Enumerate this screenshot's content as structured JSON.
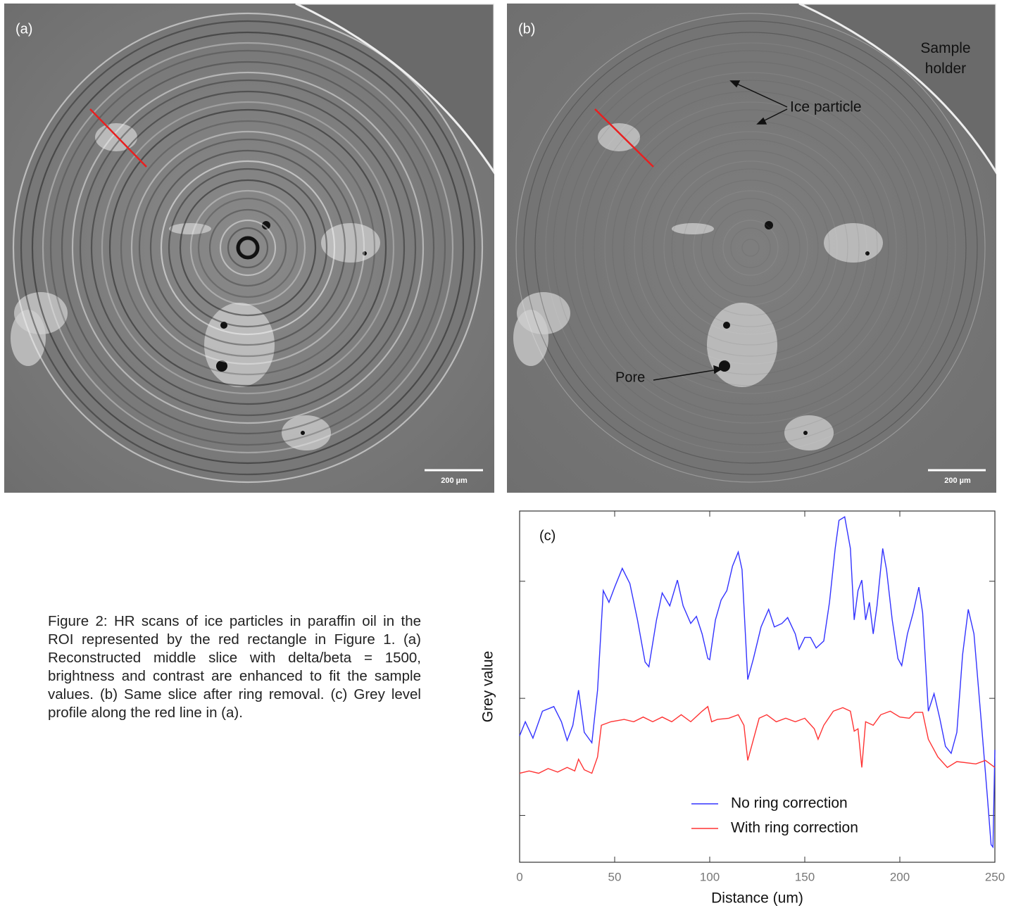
{
  "panels": [
    {
      "label": "(a)",
      "scale_bar": "200 µm"
    },
    {
      "label": "(b)",
      "scale_bar": "200 µm",
      "annotations": [
        "Sample holder",
        "Ice particle",
        "Pore"
      ]
    }
  ],
  "caption": "Figure 2: HR scans of ice particles in paraffin oil in the ROI represented by the red rectangle in Figure 1. (a) Reconstructed middle slice with delta/beta = 1500, brightness and contrast are enhanced to fit the sample values. (b) Same slice after ring removal. (c) Grey level profile along the red line in (a).",
  "chart_data": {
    "type": "line",
    "label": "(c)",
    "xlabel": "Distance (um)",
    "ylabel": "Grey value",
    "xlim": [
      0,
      250
    ],
    "xticks": [
      0,
      50,
      100,
      150,
      200,
      250
    ],
    "ylim": [
      0,
      3
    ],
    "yticks": [
      0.4,
      1.4,
      2.4
    ],
    "legend": "lower center",
    "series": [
      {
        "name": "No ring correction",
        "color": "#3333ff",
        "x": [
          0,
          3,
          7,
          12,
          18,
          22,
          25,
          28,
          31,
          34,
          38,
          41,
          44,
          47,
          50,
          54,
          58,
          62,
          66,
          68,
          72,
          75,
          79,
          83,
          86,
          90,
          93,
          96,
          99,
          100,
          103,
          106,
          109,
          112,
          115,
          117,
          120,
          123,
          127,
          131,
          134,
          138,
          141,
          145,
          147,
          150,
          153,
          156,
          160,
          163,
          166,
          168,
          171,
          174,
          176,
          178,
          180,
          182,
          184,
          186,
          188,
          191,
          193,
          196,
          199,
          201,
          204,
          207,
          210,
          212,
          215,
          218,
          221,
          224,
          227,
          230,
          233,
          236,
          239,
          243,
          246,
          248,
          249,
          250
        ],
        "values": [
          1.08,
          1.2,
          1.06,
          1.29,
          1.33,
          1.2,
          1.04,
          1.17,
          1.47,
          1.11,
          1.02,
          1.47,
          2.32,
          2.22,
          2.35,
          2.51,
          2.38,
          2.07,
          1.71,
          1.67,
          2.07,
          2.3,
          2.19,
          2.41,
          2.19,
          2.04,
          2.1,
          1.95,
          1.74,
          1.73,
          2.07,
          2.24,
          2.32,
          2.53,
          2.65,
          2.5,
          1.56,
          1.74,
          2.01,
          2.16,
          2.01,
          2.04,
          2.09,
          1.95,
          1.82,
          1.92,
          1.92,
          1.83,
          1.89,
          2.22,
          2.68,
          2.92,
          2.95,
          2.68,
          2.07,
          2.32,
          2.41,
          2.07,
          2.22,
          1.95,
          2.19,
          2.68,
          2.5,
          2.07,
          1.74,
          1.68,
          1.95,
          2.13,
          2.35,
          2.13,
          1.29,
          1.44,
          1.23,
          0.99,
          0.93,
          1.11,
          1.77,
          2.16,
          1.95,
          1.17,
          0.57,
          0.15,
          0.13,
          0.96
        ]
      },
      {
        "name": "With ring correction",
        "color": "#ff3333",
        "x": [
          0,
          5,
          10,
          15,
          20,
          25,
          29,
          31,
          34,
          38,
          41,
          43,
          48,
          55,
          60,
          65,
          70,
          75,
          80,
          85,
          90,
          96,
          99,
          101,
          104,
          110,
          115,
          118,
          120,
          123,
          126,
          130,
          135,
          140,
          145,
          150,
          155,
          157,
          160,
          165,
          170,
          174,
          176,
          178,
          180,
          182,
          186,
          190,
          195,
          200,
          205,
          208,
          212,
          215,
          220,
          225,
          230,
          240,
          245,
          250
        ],
        "values": [
          0.76,
          0.78,
          0.76,
          0.8,
          0.77,
          0.81,
          0.78,
          0.88,
          0.79,
          0.76,
          0.9,
          1.17,
          1.2,
          1.22,
          1.2,
          1.24,
          1.2,
          1.24,
          1.2,
          1.26,
          1.2,
          1.29,
          1.33,
          1.2,
          1.22,
          1.23,
          1.26,
          1.17,
          0.87,
          1.05,
          1.23,
          1.26,
          1.2,
          1.23,
          1.2,
          1.23,
          1.14,
          1.05,
          1.17,
          1.29,
          1.32,
          1.29,
          1.12,
          1.14,
          0.81,
          1.2,
          1.17,
          1.26,
          1.29,
          1.24,
          1.23,
          1.28,
          1.28,
          1.05,
          0.9,
          0.81,
          0.86,
          0.84,
          0.87,
          0.81
        ]
      }
    ]
  }
}
